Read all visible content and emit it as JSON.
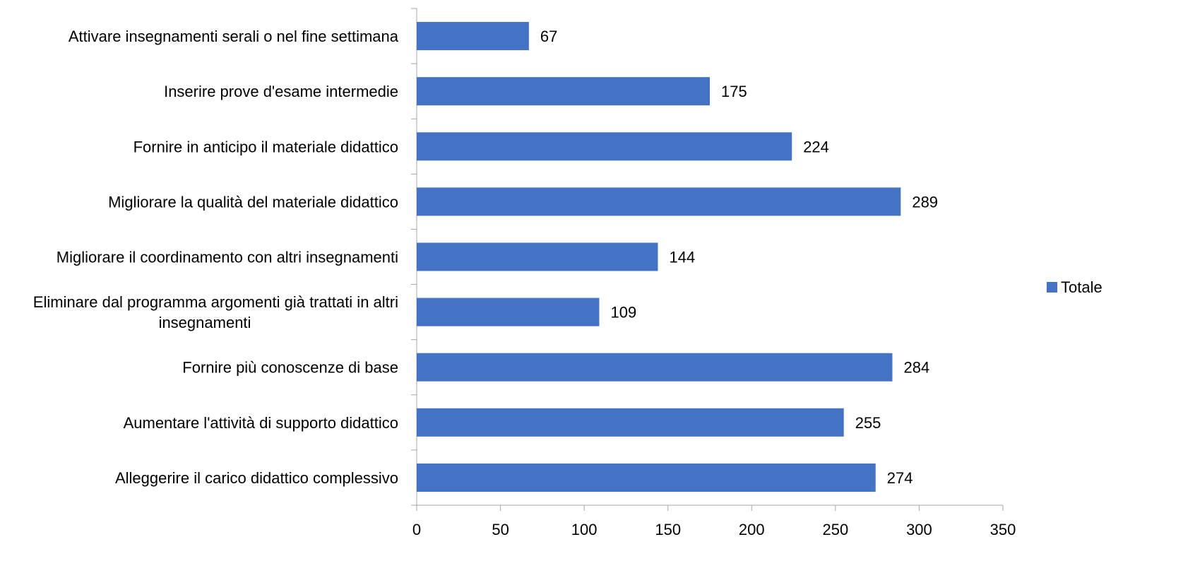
{
  "chart_data": {
    "type": "bar",
    "orientation": "horizontal",
    "categories": [
      "Attivare insegnamenti serali o nel fine settimana",
      "Inserire prove d'esame intermedie",
      "Fornire in anticipo il materiale didattico",
      "Migliorare la qualità del materiale didattico",
      "Migliorare il coordinamento con altri insegnamenti",
      "Eliminare dal programma argomenti già trattati in altri insegnamenti",
      "Fornire più conoscenze di base",
      "Aumentare l'attività di supporto didattico",
      "Alleggerire il carico didattico complessivo"
    ],
    "category_lines": [
      [
        "Attivare insegnamenti serali o nel fine settimana"
      ],
      [
        "Inserire prove d'esame intermedie"
      ],
      [
        "Fornire in anticipo il materiale didattico"
      ],
      [
        "Migliorare la qualità del materiale didattico"
      ],
      [
        "Migliorare il coordinamento con altri insegnamenti"
      ],
      [
        "Eliminare dal programma argomenti già trattati in altri",
        "insegnamenti"
      ],
      [
        "Fornire più conoscenze di base"
      ],
      [
        "Aumentare l'attività di supporto didattico"
      ],
      [
        "Alleggerire il carico didattico complessivo"
      ]
    ],
    "series": [
      {
        "name": "Totale",
        "color": "#4472C4",
        "values": [
          67,
          175,
          224,
          289,
          144,
          109,
          284,
          255,
          274
        ]
      }
    ],
    "xlim": [
      0,
      350
    ],
    "xticks": [
      0,
      50,
      100,
      150,
      200,
      250,
      300,
      350
    ],
    "grid": false,
    "data_labels": true,
    "legend": {
      "position": "right",
      "entries": [
        "Totale"
      ]
    },
    "title": "",
    "xlabel": "",
    "ylabel": ""
  },
  "colors": {
    "bar": "#4472C4",
    "axis": "#A6A6A6",
    "text": "#000000",
    "background": "#FFFFFF"
  }
}
